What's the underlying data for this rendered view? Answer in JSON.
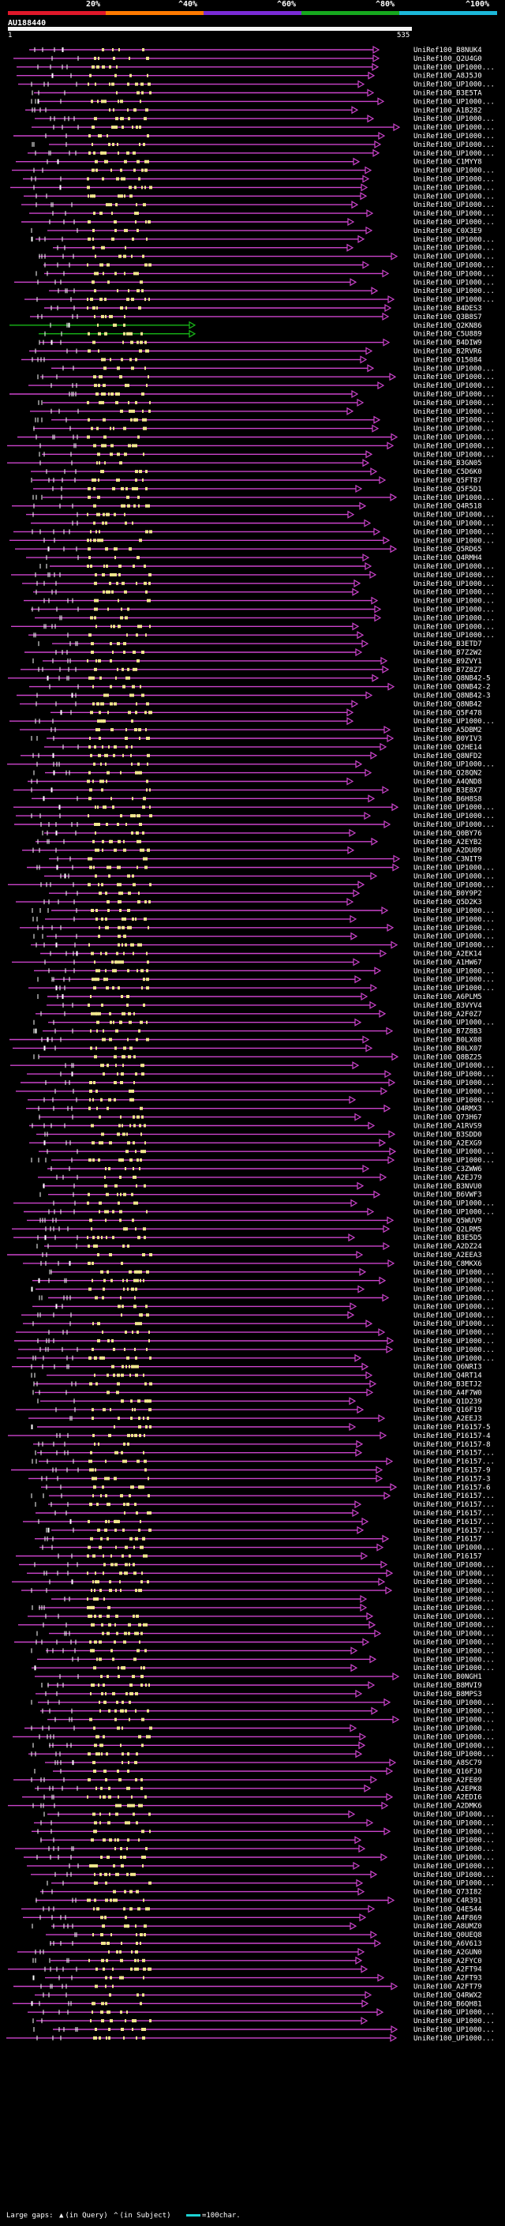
{
  "scale": {
    "labels": [
      "20%",
      "^40%",
      "^60%",
      "^80%",
      "^100%"
    ],
    "segments": [
      "#e0182a",
      "#ff7a00",
      "#7a2bd6",
      "#16a81e",
      "#1cb7d8"
    ]
  },
  "query": {
    "name": "AU188440",
    "start": "1",
    "end": "535"
  },
  "colors": {
    "hit": "#cc44cc",
    "highlight": "#18b818",
    "block": "#f0e68c",
    "arrow": "#cc44cc"
  },
  "hits": [
    "UniRef100_B8NUK4",
    "UniRef100_Q2U4G0",
    "UniRef100_UP1000...",
    "UniRef100_A8J5J0",
    "UniRef100_UP1000...",
    "UniRef100_B3E5TA",
    "UniRef100_UP1000...",
    "UniRef100_A1B282",
    "UniRef100_UP1000...",
    "UniRef100_UP1000...",
    "UniRef100_UP1000...",
    "UniRef100_UP1000...",
    "UniRef100_UP1000...",
    "UniRef100_C1MYY8",
    "UniRef100_UP1000...",
    "UniRef100_UP1000...",
    "UniRef100_UP1000...",
    "UniRef100_UP1000...",
    "UniRef100_UP1000...",
    "UniRef100_UP1000...",
    "UniRef100_UP1000...",
    "UniRef100_C0X3E9",
    "UniRef100_UP1000...",
    "UniRef100_UP1000...",
    "UniRef100_UP1000...",
    "UniRef100_UP1000...",
    "UniRef100_UP1000...",
    "UniRef100_UP1000...",
    "UniRef100_UP1000...",
    "UniRef100_UP1000...",
    "UniRef100_B4DES3",
    "UniRef100_Q3B8S7",
    "UniRef100_Q2KN86",
    "UniRef100_C5U889",
    "UniRef100_B4DIW9",
    "UniRef100_B2RVR6",
    "UniRef100_O15084",
    "UniRef100_UP1000...",
    "UniRef100_UP1000...",
    "UniRef100_UP1000...",
    "UniRef100_UP1000...",
    "UniRef100_UP1000...",
    "UniRef100_UP1000...",
    "UniRef100_UP1000...",
    "UniRef100_UP1000...",
    "UniRef100_UP1000...",
    "UniRef100_UP1000...",
    "UniRef100_UP1000...",
    "UniRef100_B3GN05",
    "UniRef100_C5D6K0",
    "UniRef100_Q5FT87",
    "UniRef100_Q5F5D1",
    "UniRef100_UP1000...",
    "UniRef100_Q4R518",
    "UniRef100_UP1000...",
    "UniRef100_UP1000...",
    "UniRef100_UP1000...",
    "UniRef100_UP1000...",
    "UniRef100_Q5RD65",
    "UniRef100_Q4RMH4",
    "UniRef100_UP1000...",
    "UniRef100_UP1000...",
    "UniRef100_UP1000...",
    "UniRef100_UP1000...",
    "UniRef100_UP1000...",
    "UniRef100_UP1000...",
    "UniRef100_UP1000...",
    "UniRef100_UP1000...",
    "UniRef100_UP1000...",
    "UniRef100_B3ETD7",
    "UniRef100_B7Z2W2",
    "UniRef100_B9ZVY1",
    "UniRef100_B7Z8Z7",
    "UniRef100_Q8NB42-5",
    "UniRef100_Q8NB42-2",
    "UniRef100_Q8NB42-3",
    "UniRef100_Q8NB42",
    "UniRef100_Q5F478",
    "UniRef100_UP1000...",
    "UniRef100_A5DBM2",
    "UniRef100_B0YIV3",
    "UniRef100_Q2HE14",
    "UniRef100_Q8NFD2",
    "UniRef100_UP1000...",
    "UniRef100_Q28QN2",
    "UniRef100_A4QND8",
    "UniRef100_B3E8X7",
    "UniRef100_B6H8S8",
    "UniRef100_UP1000...",
    "UniRef100_UP1000...",
    "UniRef100_UP1000...",
    "UniRef100_Q0BY76",
    "UniRef100_A2EYB2",
    "UniRef100_A2DU09",
    "UniRef100_C3NIT9",
    "UniRef100_UP1000...",
    "UniRef100_UP1000...",
    "UniRef100_UP1000...",
    "UniRef100_B0Y9P2",
    "UniRef100_Q5D2K3",
    "UniRef100_UP1000...",
    "UniRef100_UP1000...",
    "UniRef100_UP1000...",
    "UniRef100_UP1000...",
    "UniRef100_UP1000...",
    "UniRef100_A2EK14",
    "UniRef100_A1HW67",
    "UniRef100_UP1000...",
    "UniRef100_UP1000...",
    "UniRef100_UP1000...",
    "UniRef100_A6PLM5",
    "UniRef100_B3VYV4",
    "UniRef100_A2F0Z7",
    "UniRef100_UP1000...",
    "UniRef100_B7Z8B3",
    "UniRef100_B0LX08",
    "UniRef100_B0LX07",
    "UniRef100_Q8BZ25",
    "UniRef100_UP1000...",
    "UniRef100_UP1000...",
    "UniRef100_UP1000...",
    "UniRef100_UP1000...",
    "UniRef100_UP1000...",
    "UniRef100_Q4RMX3",
    "UniRef100_Q73H67",
    "UniRef100_A1RVS9",
    "UniRef100_B3SDD0",
    "UniRef100_A2EXG9",
    "UniRef100_UP1000...",
    "UniRef100_UP1000...",
    "UniRef100_C3ZWW6",
    "UniRef100_A2EJ79",
    "UniRef100_B3NVU0",
    "UniRef100_B6VWF3",
    "UniRef100_UP1000...",
    "UniRef100_UP1000...",
    "UniRef100_Q5WUV9",
    "UniRef100_Q2LRM5",
    "UniRef100_B3E5D5",
    "UniRef100_A2DZ24",
    "UniRef100_A2EEA3",
    "UniRef100_C8MKX6",
    "UniRef100_UP1000...",
    "UniRef100_UP1000...",
    "UniRef100_UP1000...",
    "UniRef100_UP1000...",
    "UniRef100_UP1000...",
    "UniRef100_UP1000...",
    "UniRef100_UP1000...",
    "UniRef100_UP1000...",
    "UniRef100_UP1000...",
    "UniRef100_UP1000...",
    "UniRef100_UP1000...",
    "UniRef100_Q6NRI3",
    "UniRef100_Q4RT14",
    "UniRef100_B3ETJ2",
    "UniRef100_A4F7W0",
    "UniRef100_Q1D239",
    "UniRef100_Q16F19",
    "UniRef100_A2EEJ3",
    "UniRef100_P16157-5",
    "UniRef100_P16157-4",
    "UniRef100_P16157-8",
    "UniRef100_P16157...",
    "UniRef100_P16157...",
    "UniRef100_P16157-9",
    "UniRef100_P16157-3",
    "UniRef100_P16157-6",
    "UniRef100_P16157...",
    "UniRef100_P16157...",
    "UniRef100_P16157...",
    "UniRef100_P16157...",
    "UniRef100_P16157...",
    "UniRef100_P16157",
    "UniRef100_UP1000...",
    "UniRef100_P16157",
    "UniRef100_UP1000...",
    "UniRef100_UP1000...",
    "UniRef100_UP1000...",
    "UniRef100_UP1000...",
    "UniRef100_UP1000...",
    "UniRef100_UP1000...",
    "UniRef100_UP1000...",
    "UniRef100_UP1000...",
    "UniRef100_UP1000...",
    "UniRef100_UP1000...",
    "UniRef100_UP1000...",
    "UniRef100_UP1000...",
    "UniRef100_UP1000...",
    "UniRef100_B0NGH1",
    "UniRef100_B8MVI9",
    "UniRef100_B8MPS3",
    "UniRef100_UP1000...",
    "UniRef100_UP1000...",
    "UniRef100_UP1000...",
    "UniRef100_UP1000...",
    "UniRef100_UP1000...",
    "UniRef100_UP1000...",
    "UniRef100_UP1000...",
    "UniRef100_A8SC79",
    "UniRef100_Q16FJ0",
    "UniRef100_A2FE09",
    "UniRef100_A2EPK8",
    "UniRef100_A2EDI6",
    "UniRef100_A2DMK6",
    "UniRef100_UP1000...",
    "UniRef100_UP1000...",
    "UniRef100_UP1000...",
    "UniRef100_UP1000...",
    "UniRef100_UP1000...",
    "UniRef100_UP1000...",
    "UniRef100_UP1000...",
    "UniRef100_UP1000...",
    "UniRef100_UP1000...",
    "UniRef100_Q73I82",
    "UniRef100_C4R391",
    "UniRef100_Q4E544",
    "UniRef100_A4F869",
    "UniRef100_A8UMZ0",
    "UniRef100_Q0UEQ8",
    "UniRef100_A6V613",
    "UniRef100_A2GUN0",
    "UniRef100_A2FYC0",
    "UniRef100_A2FT94",
    "UniRef100_A2FT93",
    "UniRef100_A2FT79",
    "UniRef100_Q4RWX2",
    "UniRef100_B6QH81",
    "UniRef100_UP1000...",
    "UniRef100_UP1000...",
    "UniRef100_UP1000...",
    "UniRef100_UP1000..."
  ],
  "legend": {
    "label": "Large gaps:",
    "in_query": "(in Query)",
    "in_subject": "(in Subject)",
    "scale": "=100char."
  }
}
